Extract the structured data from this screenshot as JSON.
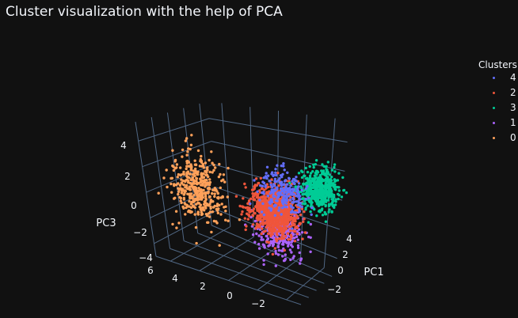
{
  "chart_data": {
    "type": "scatter",
    "title": "Cluster visualization with the help of PCA",
    "axes": {
      "x": {
        "label": "PC1",
        "ticks": [
          "4",
          "2",
          "0",
          "−2"
        ]
      },
      "y": {
        "label": "",
        "ticks": [
          "6",
          "4",
          "2",
          "0",
          "−2"
        ]
      },
      "z": {
        "label": "PC3",
        "ticks": [
          "4",
          "2",
          "0",
          "−2",
          "−4"
        ]
      }
    },
    "legend": {
      "title": "Clusters",
      "placement": "top-right",
      "entries": [
        {
          "name": "4",
          "color": "#636efa"
        },
        {
          "name": "2",
          "color": "#ef553b"
        },
        {
          "name": "3",
          "color": "#00cc96"
        },
        {
          "name": "1",
          "color": "#ab63fa"
        },
        {
          "name": "0",
          "color": "#ffa15a"
        }
      ]
    },
    "series": [
      {
        "name": "0",
        "color": "#ffa15a",
        "center": [
          -3.0,
          4.2,
          1.2
        ],
        "spread": [
          0.9,
          0.7,
          1.3
        ],
        "count": 420
      },
      {
        "name": "1",
        "color": "#ab63fa",
        "center": [
          1.2,
          0.4,
          -1.9
        ],
        "spread": [
          0.9,
          0.8,
          0.9
        ],
        "count": 380
      },
      {
        "name": "2",
        "color": "#ef553b",
        "center": [
          1.5,
          0.8,
          -0.7
        ],
        "spread": [
          0.7,
          0.8,
          0.9
        ],
        "count": 900
      },
      {
        "name": "3",
        "color": "#00cc96",
        "center": [
          2.6,
          -1.9,
          1.3
        ],
        "spread": [
          0.7,
          0.6,
          0.7
        ],
        "count": 520
      },
      {
        "name": "4",
        "color": "#636efa",
        "center": [
          -0.6,
          -0.4,
          1.9
        ],
        "spread": [
          0.7,
          0.7,
          0.8
        ],
        "count": 220
      }
    ],
    "grid": true,
    "background": "#111111",
    "grid_color": "#506784"
  }
}
